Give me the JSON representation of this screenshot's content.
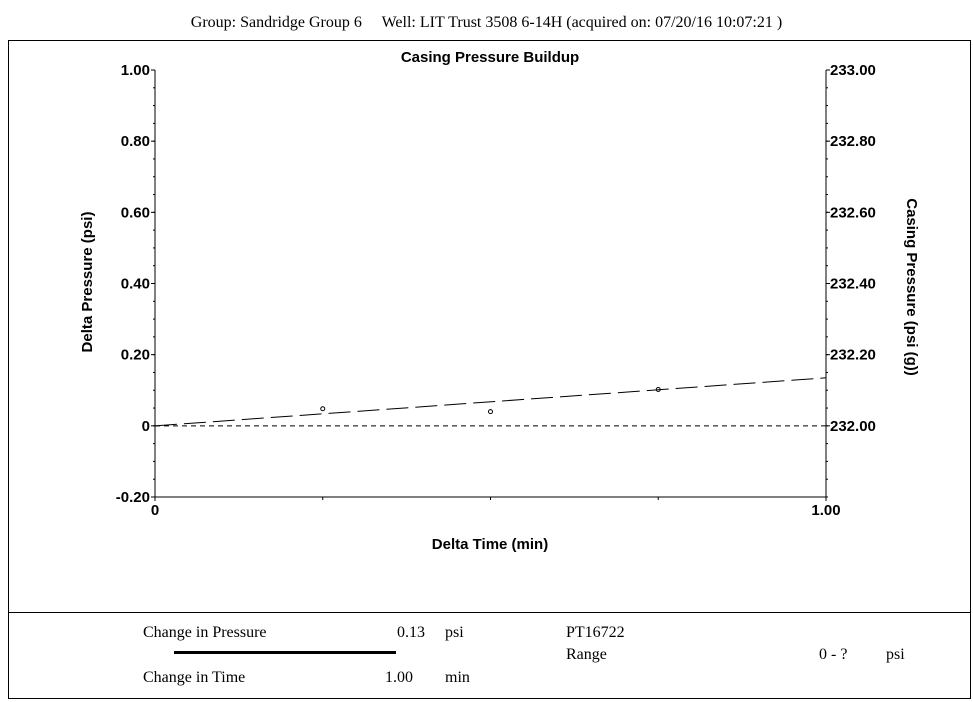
{
  "header": {
    "group_label": "Group: Sandridge Group 6",
    "well_label": "Well: LIT Trust 3508 6-14H (acquired on: 07/20/16 10:07:21 )"
  },
  "chart_data": {
    "type": "line",
    "title": "Casing Pressure Buildup",
    "xlabel": "Delta Time (min)",
    "ylabel": "Delta Pressure (psi)",
    "y2label": "Casing Pressure (psi (g))",
    "xlim": [
      0,
      1.0
    ],
    "ylim": [
      -0.2,
      1.0
    ],
    "y2lim": [
      231.8,
      233.0
    ],
    "x_ticks": [
      "0",
      "1.00"
    ],
    "y_ticks": [
      "-0.20",
      "0",
      "0.20",
      "0.40",
      "0.60",
      "0.80",
      "1.00"
    ],
    "y2_ticks": [
      "232.00",
      "232.20",
      "232.40",
      "232.60",
      "232.80",
      "233.00"
    ],
    "grid": false,
    "series": [
      {
        "style": "markers",
        "x": [
          0.25,
          0.5,
          0.75
        ],
        "y": [
          0.048,
          0.04,
          0.102
        ]
      },
      {
        "style": "dashed-long",
        "x": [
          0,
          1.0
        ],
        "y": [
          0,
          0.135
        ]
      },
      {
        "style": "dashed-short",
        "x": [
          0,
          1.0
        ],
        "y": [
          0,
          0
        ]
      }
    ]
  },
  "footer": {
    "change_pressure_label": "Change in Pressure",
    "change_pressure_value": "0.13",
    "change_pressure_unit": "psi",
    "change_time_label": "Change in Time",
    "change_time_value": "1.00",
    "change_time_unit": "min",
    "sensor_id": "PT16722",
    "range_label": "Range",
    "range_value": "0 - ?",
    "range_unit": "psi"
  }
}
